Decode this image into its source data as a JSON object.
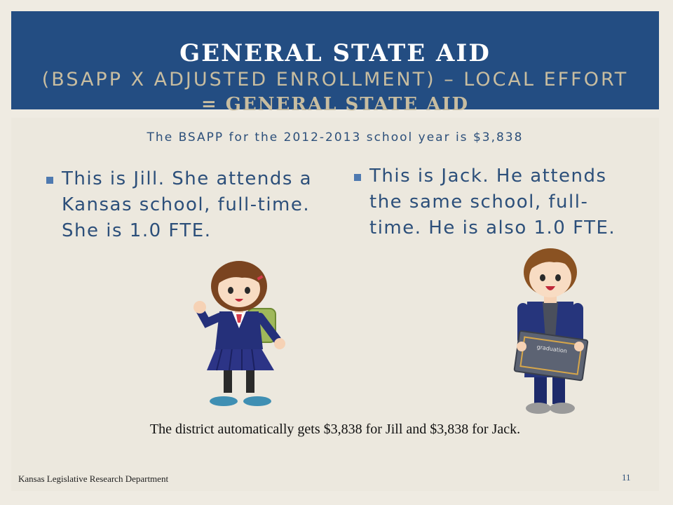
{
  "title": {
    "line1": "GENERAL STATE AID",
    "line2": "(BSAPP X ADJUSTED ENROLLMENT) – LOCAL EFFORT",
    "line3": "= GENERAL STATE AID"
  },
  "subtitle": "The BSAPP for the 2012-2013 school year is $3,838",
  "bullets": {
    "jill": "This is Jill.  She attends a Kansas school, full-time.  She is 1.0 FTE.",
    "jack": "This is Jack.  He attends the same school, full-time.  He is also 1.0 FTE."
  },
  "footnote": "The district automatically gets $3,838 for Jill and $3,838 for Jack.",
  "footer": {
    "department": "Kansas Legislative Research Department",
    "page_number": "11"
  },
  "illustrations": {
    "jill": "girl-student-illustration",
    "jack": "boy-student-illustration",
    "diploma_text": "graduation"
  },
  "colors": {
    "title_band": "#234d82",
    "accent_text": "#c8bda0",
    "body_text": "#2c4f7a",
    "background": "#efebe2"
  }
}
